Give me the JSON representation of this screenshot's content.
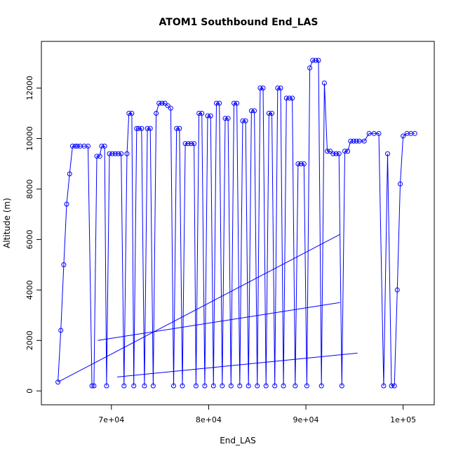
{
  "chart_data": {
    "type": "line",
    "title": "ATOM1 Southbound End_LAS",
    "xlabel": "End_LAS",
    "ylabel": "Altitude (m)",
    "xlim": [
      62800,
      103200
    ],
    "ylim": [
      -550,
      13850
    ],
    "x_ticks": [
      70000,
      80000,
      90000,
      100000
    ],
    "x_tick_labels": [
      "7e+04",
      "8e+04",
      "9e+04",
      "1e+05"
    ],
    "y_ticks": [
      0,
      2000,
      4000,
      6000,
      8000,
      10000,
      12000
    ],
    "y_tick_labels": [
      "0",
      "2000",
      "4000",
      "6000",
      "8000",
      "10000",
      "12000"
    ],
    "grid": false,
    "color": "#0000ff",
    "marker": "open-circle",
    "series": [
      {
        "x": [
          64500,
          64800,
          65100,
          65400,
          65700,
          66000,
          66300,
          66500,
          66800,
          67200,
          67600,
          68000,
          68200,
          68500,
          68800,
          69000,
          69300,
          69500,
          69800,
          70100,
          70400,
          70700,
          71000,
          71300,
          71600,
          71800,
          72100,
          72300,
          72600,
          72800,
          73100,
          73400,
          73700,
          74000,
          74300,
          74600,
          74900,
          75200,
          75500,
          75800,
          76100,
          76400,
          76700,
          77000,
          77300,
          77600,
          77900,
          78200,
          78500,
          78700,
          79000,
          79300,
          79600,
          79900,
          80200,
          80500,
          80800,
          81100,
          81400,
          81700,
          82000,
          82300,
          82600,
          82900,
          83200,
          83500,
          83800,
          84100,
          84400,
          84700,
          85000,
          85300,
          85600,
          85900,
          86200,
          86500,
          86800,
          87100,
          87400,
          87700,
          88000,
          88300,
          88600,
          88900,
          89200,
          89500,
          89800,
          90100,
          90400,
          90700,
          91000,
          91300,
          91600,
          91900,
          92200,
          92500,
          92800,
          93100,
          93400,
          93700,
          94000,
          94300,
          94600,
          94900,
          95200,
          95500,
          96000,
          96500,
          97000,
          97500,
          98000,
          98400,
          98800,
          99100,
          99400,
          99700,
          100000,
          100400,
          100800,
          101200
        ],
        "y": [
          350,
          2400,
          5000,
          7400,
          8600,
          9700,
          9700,
          9700,
          9700,
          9700,
          9700,
          200,
          200,
          9300,
          9300,
          9700,
          9700,
          200,
          9400,
          9400,
          9400,
          9400,
          9400,
          200,
          9400,
          11000,
          11000,
          200,
          10400,
          10400,
          10400,
          200,
          10400,
          10400,
          200,
          11000,
          11400,
          11400,
          11400,
          11300,
          11200,
          200,
          10400,
          10400,
          200,
          9800,
          9800,
          9800,
          9800,
          200,
          11000,
          11000,
          200,
          10900,
          10900,
          200,
          11400,
          11400,
          200,
          10800,
          10800,
          200,
          11400,
          11400,
          200,
          10700,
          10700,
          200,
          11100,
          11100,
          200,
          12000,
          12000,
          200,
          11000,
          11000,
          200,
          12000,
          12000,
          200,
          11600,
          11600,
          11600,
          200,
          9000,
          9000,
          9000,
          200,
          12800,
          13100,
          13100,
          13100,
          200,
          12200,
          9500,
          9500,
          9400,
          9400,
          9400,
          200,
          9500,
          9500,
          9900,
          9900,
          9900,
          9900,
          9900,
          10200,
          10200,
          10200,
          200,
          9400,
          200,
          200,
          4000,
          8200,
          10100,
          10200,
          10200,
          10200
        ]
      },
      {
        "x": [
          64500,
          93500
        ],
        "y": [
          350,
          6200
        ]
      },
      {
        "x": [
          68600,
          93500
        ],
        "y": [
          2000,
          3500
        ]
      },
      {
        "x": [
          70600,
          95300
        ],
        "y": [
          550,
          1500
        ]
      }
    ]
  }
}
